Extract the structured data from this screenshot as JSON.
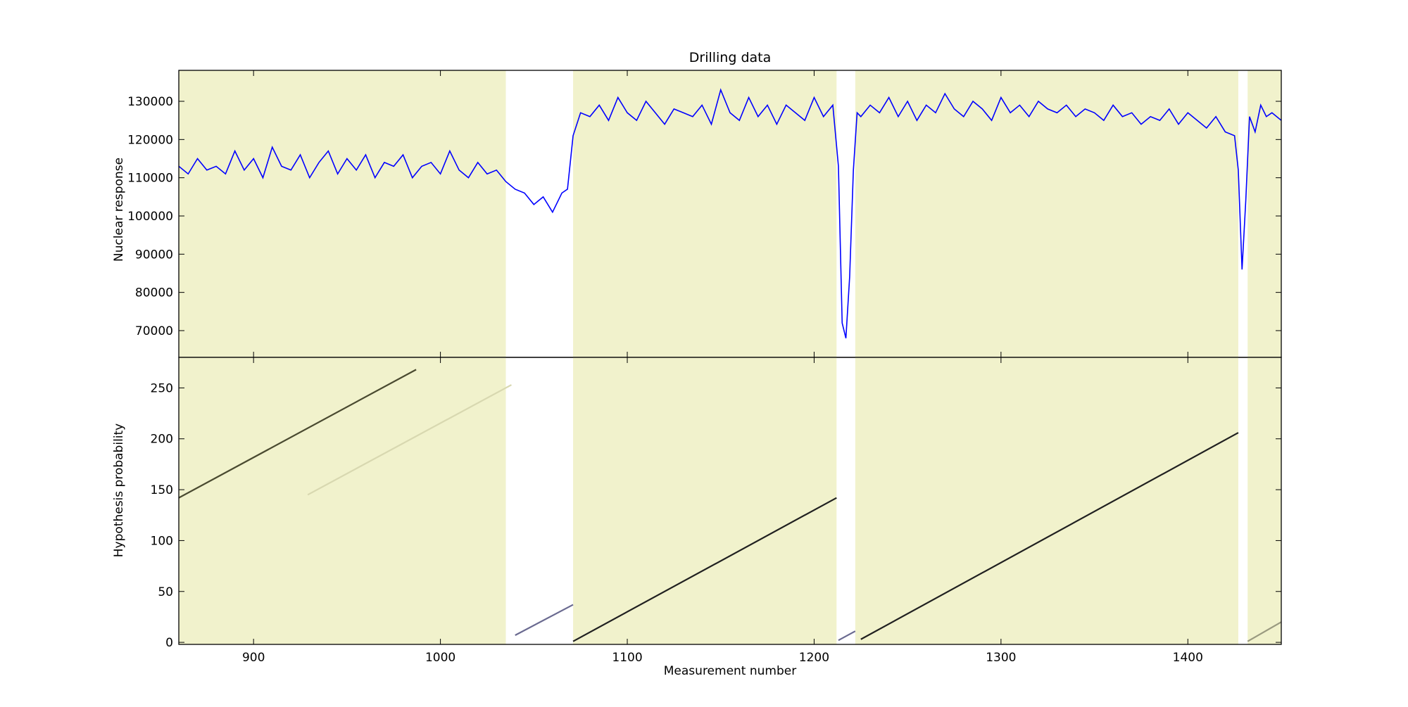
{
  "chart_data": [
    {
      "type": "line",
      "title": "Drilling data",
      "ylabel": "Nuclear response",
      "xlim": [
        860,
        1450
      ],
      "ylim": [
        63000,
        138100
      ],
      "xticks": [
        900,
        1000,
        1100,
        1200,
        1300,
        1400
      ],
      "yticks": [
        70000,
        80000,
        90000,
        100000,
        110000,
        120000,
        130000
      ],
      "spans": [
        [
          860,
          1035
        ],
        [
          1071,
          1212
        ],
        [
          1222,
          1427
        ],
        [
          1432,
          1450
        ]
      ],
      "span_color": "#f1f2cc",
      "series": [
        {
          "color": "#0000ff",
          "x": [
            860,
            865,
            870,
            875,
            880,
            885,
            890,
            895,
            900,
            905,
            910,
            915,
            920,
            925,
            930,
            935,
            940,
            945,
            950,
            955,
            960,
            965,
            970,
            975,
            980,
            985,
            990,
            995,
            1000,
            1005,
            1010,
            1015,
            1020,
            1025,
            1030,
            1035,
            1040,
            1045,
            1050,
            1055,
            1060,
            1065,
            1068,
            1071,
            1075,
            1080,
            1085,
            1090,
            1095,
            1100,
            1105,
            1110,
            1115,
            1120,
            1125,
            1130,
            1135,
            1140,
            1145,
            1150,
            1155,
            1160,
            1165,
            1170,
            1175,
            1180,
            1185,
            1190,
            1195,
            1200,
            1205,
            1210,
            1213,
            1215,
            1217,
            1219,
            1221,
            1223,
            1225,
            1230,
            1235,
            1240,
            1245,
            1250,
            1255,
            1260,
            1265,
            1270,
            1275,
            1280,
            1285,
            1290,
            1295,
            1300,
            1305,
            1310,
            1315,
            1320,
            1325,
            1330,
            1335,
            1340,
            1345,
            1350,
            1355,
            1360,
            1365,
            1370,
            1375,
            1380,
            1385,
            1390,
            1395,
            1400,
            1405,
            1410,
            1415,
            1420,
            1425,
            1427,
            1429,
            1431,
            1433,
            1436,
            1439,
            1442,
            1445,
            1450
          ],
          "values": [
            113000,
            111000,
            115000,
            112000,
            113000,
            111000,
            117000,
            112000,
            115000,
            110000,
            118000,
            113000,
            112000,
            116000,
            110000,
            114000,
            117000,
            111000,
            115000,
            112000,
            116000,
            110000,
            114000,
            113000,
            116000,
            110000,
            113000,
            114000,
            111000,
            117000,
            112000,
            110000,
            114000,
            111000,
            112000,
            109000,
            107000,
            106000,
            103000,
            105000,
            101000,
            106000,
            107000,
            121000,
            127000,
            126000,
            129000,
            125000,
            131000,
            127000,
            125000,
            130000,
            127000,
            124000,
            128000,
            127000,
            126000,
            129000,
            124000,
            133000,
            127000,
            125000,
            131000,
            126000,
            129000,
            124000,
            129000,
            127000,
            125000,
            131000,
            126000,
            129000,
            113000,
            72000,
            68000,
            84000,
            112000,
            127000,
            126000,
            129000,
            127000,
            131000,
            126000,
            130000,
            125000,
            129000,
            127000,
            132000,
            128000,
            126000,
            130000,
            128000,
            125000,
            131000,
            127000,
            129000,
            126000,
            130000,
            128000,
            127000,
            129000,
            126000,
            128000,
            127000,
            125000,
            129000,
            126000,
            127000,
            124000,
            126000,
            125000,
            128000,
            124000,
            127000,
            125000,
            123000,
            126000,
            122000,
            121000,
            112000,
            86000,
            104000,
            126000,
            122000,
            129000,
            126000,
            127000,
            125000
          ]
        }
      ]
    },
    {
      "type": "line",
      "xlabel": "Measurement number",
      "ylabel": "Hypothesis probability",
      "xlim": [
        860,
        1450
      ],
      "ylim": [
        -2,
        280
      ],
      "xticks": [
        900,
        1000,
        1100,
        1200,
        1300,
        1400
      ],
      "yticks": [
        0,
        50,
        100,
        150,
        200,
        250
      ],
      "spans": [
        [
          860,
          1035
        ],
        [
          1071,
          1212
        ],
        [
          1222,
          1427
        ],
        [
          1432,
          1450
        ]
      ],
      "span_color": "#f1f2cc",
      "series": [
        {
          "color": "#4a4a30",
          "x": [
            860,
            987
          ],
          "values": [
            142,
            268
          ]
        },
        {
          "color": "#d8d8b0",
          "x": [
            929,
            1038
          ],
          "values": [
            145,
            253
          ]
        },
        {
          "color": "#6a6a90",
          "x": [
            1040,
            1071
          ],
          "values": [
            7,
            37
          ]
        },
        {
          "color": "#202020",
          "x": [
            1071,
            1212
          ],
          "values": [
            1,
            142
          ]
        },
        {
          "color": "#6a6a90",
          "x": [
            1213,
            1222
          ],
          "values": [
            2,
            11
          ]
        },
        {
          "color": "#202020",
          "x": [
            1225,
            1427
          ],
          "values": [
            3,
            206
          ]
        },
        {
          "color": "#9a9a80",
          "x": [
            1432,
            1450
          ],
          "values": [
            1,
            20
          ]
        }
      ]
    }
  ]
}
